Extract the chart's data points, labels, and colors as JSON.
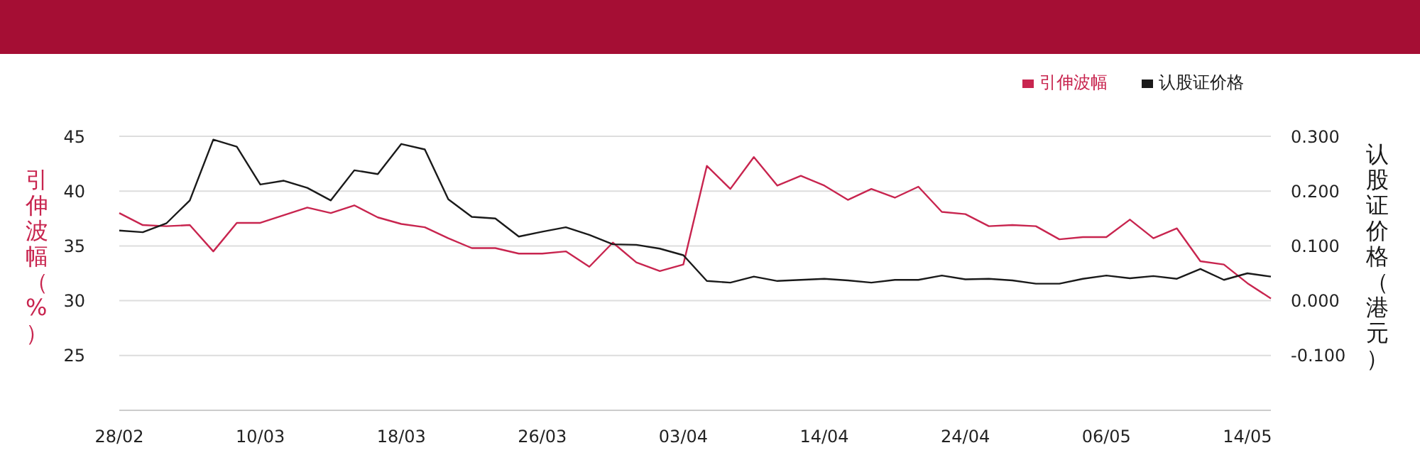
{
  "chart_data": {
    "type": "line",
    "ylabel": "引伸波幅（%）",
    "y2label": "认股证价格（港元）",
    "categories": [
      "28/02",
      null,
      null,
      null,
      null,
      null,
      "10/03",
      null,
      null,
      null,
      null,
      null,
      "18/03",
      null,
      null,
      null,
      null,
      null,
      "26/03",
      null,
      null,
      null,
      null,
      null,
      "03/04",
      null,
      null,
      null,
      null,
      null,
      "14/04",
      null,
      null,
      null,
      null,
      null,
      "24/04",
      null,
      null,
      null,
      null,
      null,
      "06/05",
      null,
      null,
      null,
      null,
      null,
      "14/05",
      null
    ],
    "series": [
      {
        "name": "引伸波幅",
        "color": "#c8254f",
        "values": [
          38.0,
          36.9,
          36.8,
          36.9,
          34.5,
          37.1,
          37.1,
          37.8,
          38.5,
          38.0,
          38.7,
          37.6,
          37.0,
          36.7,
          35.7,
          34.8,
          34.8,
          34.3,
          34.3,
          34.5,
          33.1,
          35.3,
          33.5,
          32.7,
          33.3,
          42.3,
          40.2,
          43.1,
          40.5,
          41.4,
          40.5,
          39.2,
          40.2,
          39.4,
          40.4,
          38.1,
          37.9,
          36.8,
          36.9,
          36.8,
          35.6,
          35.8,
          35.8,
          37.4,
          35.7,
          36.6,
          33.6,
          33.3,
          31.6,
          30.2
        ]
      },
      {
        "name": "认股证价格",
        "color": "#1a1a1a",
        "axis": "y2",
        "values": [
          0.128,
          0.125,
          0.141,
          0.183,
          0.294,
          0.281,
          0.212,
          0.219,
          0.206,
          0.183,
          0.238,
          0.231,
          0.286,
          0.276,
          0.185,
          0.153,
          0.15,
          0.117,
          0.126,
          0.134,
          0.12,
          0.103,
          0.102,
          0.095,
          0.083,
          0.036,
          0.033,
          0.044,
          0.036,
          0.038,
          0.04,
          0.037,
          0.033,
          0.038,
          0.038,
          0.046,
          0.039,
          0.04,
          0.037,
          0.031,
          0.031,
          0.04,
          0.046,
          0.041,
          0.045,
          0.04,
          0.058,
          0.038,
          0.05,
          0.044
        ]
      }
    ],
    "ylim": [
      20,
      45
    ],
    "yticks": [
      25,
      30,
      35,
      40,
      45
    ],
    "y2lim": [
      -0.2,
      0.3
    ],
    "y2ticks": [
      {
        "value": -0.1,
        "label": "-0.100"
      },
      {
        "value": 0,
        "label": "0.000"
      },
      {
        "value": 0.1,
        "label": "0.100"
      },
      {
        "value": 0.2,
        "label": "0.200"
      },
      {
        "value": 0.3,
        "label": "0.300"
      }
    ],
    "grid": "y",
    "legend": "top right",
    "marker": "none",
    "line_style": "solid"
  }
}
